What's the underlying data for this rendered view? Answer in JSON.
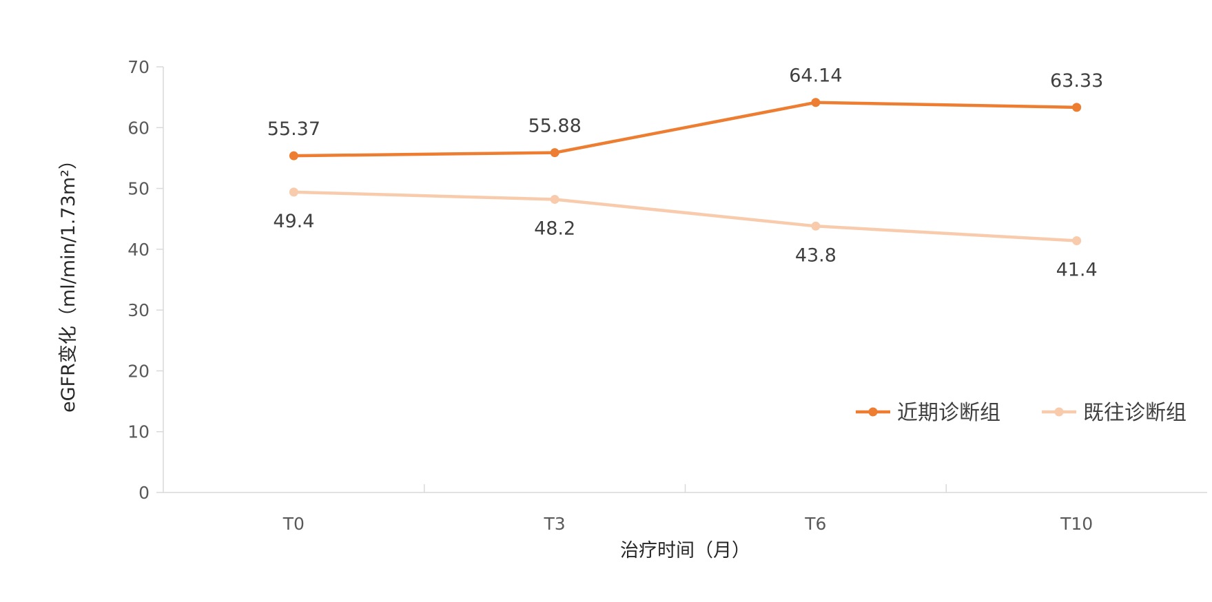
{
  "chart_data": {
    "type": "line",
    "categories": [
      "T0",
      "T3",
      "T6",
      "T10"
    ],
    "series": [
      {
        "name": "近期诊断组",
        "values": [
          55.37,
          55.88,
          64.14,
          63.33
        ],
        "labels": [
          "55.37",
          "55.88",
          "64.14",
          "63.33"
        ],
        "color": "#ED7D31",
        "label_position": "above"
      },
      {
        "name": "既往诊断组",
        "values": [
          49.4,
          48.2,
          43.8,
          41.4
        ],
        "labels": [
          "49.4",
          "48.2",
          "43.8",
          "41.4"
        ],
        "color": "#F8CBAD",
        "label_position": "below"
      }
    ],
    "xlabel": "治疗时间（月）",
    "ylabel": "eGFR变化（ml/min/1.73m²）",
    "ylim": [
      0,
      70
    ],
    "yticks": [
      "0",
      "10",
      "20",
      "30",
      "40",
      "50",
      "60",
      "70"
    ],
    "grid": false,
    "legend_position": "bottom-right"
  }
}
